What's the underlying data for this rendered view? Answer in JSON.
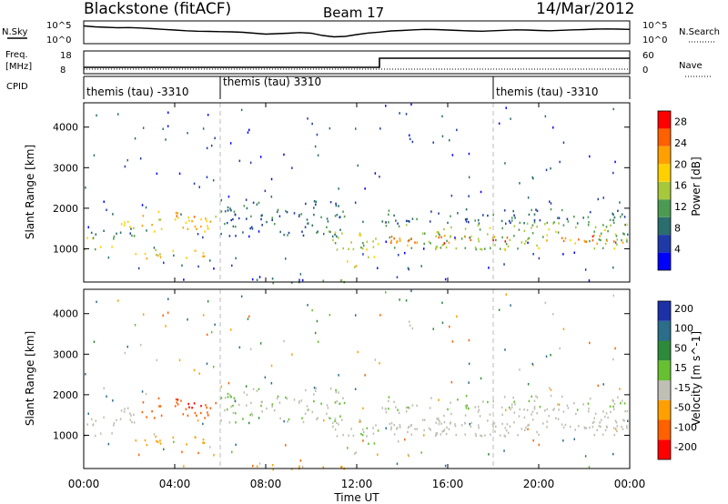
{
  "header": {
    "station": "Blackstone (fitACF)",
    "beam": "Beam 17",
    "date": "14/Mar/2012"
  },
  "noise_panel": {
    "left_label": "N.Sky",
    "right_label": "N.Search",
    "left_ticks": [
      "10^5",
      "10^0"
    ],
    "right_ticks": [
      "10^5",
      "10^0"
    ],
    "sky_trace": [
      0.78,
      0.74,
      0.72,
      0.7,
      0.71,
      0.69,
      0.66,
      0.63,
      0.6,
      0.57,
      0.55,
      0.54,
      0.53,
      0.52,
      0.5,
      0.46,
      0.42,
      0.44,
      0.46,
      0.49,
      0.46,
      0.36,
      0.3,
      0.32,
      0.4,
      0.47,
      0.51,
      0.56,
      0.58,
      0.61,
      0.63,
      0.62,
      0.6,
      0.58,
      0.56,
      0.55,
      0.57,
      0.59,
      0.61,
      0.6,
      0.58,
      0.57,
      0.59,
      0.61,
      0.62,
      0.64,
      0.65,
      0.64,
      0.63
    ]
  },
  "freq_panel": {
    "left_label_top": "Freq.",
    "left_label_bottom": "[MHz]",
    "right_label": "Nave",
    "left_ticks": [
      "18",
      "8"
    ],
    "right_ticks": [
      "60",
      "0"
    ],
    "steps": [
      {
        "t0": 0.0,
        "t1": 13.0,
        "mhz": 10.8
      },
      {
        "t0": 13.0,
        "t1": 24.0,
        "mhz": 14.8
      }
    ]
  },
  "cpid_panel": {
    "label": "CPID",
    "segments": [
      {
        "start": 0.0,
        "text": "themis (tau) -3310"
      },
      {
        "start": 6.0,
        "text": "themis (tau) 3310"
      },
      {
        "start": 18.0,
        "text": "themis (tau) -3310"
      }
    ]
  },
  "power_panel": {
    "colorbar_title": "Power [dB]",
    "colorbar_ticks": [
      "28",
      "24",
      "20",
      "16",
      "12",
      "8",
      "4"
    ],
    "colors": [
      "#0000ff",
      "#1f3aa8",
      "#2a6e6e",
      "#4c9a52",
      "#a8c83c",
      "#ffd000",
      "#ffa000",
      "#ff6000",
      "#ff0000"
    ]
  },
  "velocity_panel": {
    "colorbar_title": "Velocity [m s^-1]",
    "colorbar_ticks": [
      "200",
      "100",
      "50",
      "15",
      "-15",
      "-50",
      "-100",
      "-200"
    ],
    "colors": [
      "#1c30a8",
      "#2a6e8a",
      "#2d8a3a",
      "#66c030",
      "#bfbfb4",
      "#ffa000",
      "#ff6000",
      "#ff0000"
    ]
  },
  "y_axis": {
    "label": "Slant Range [km]",
    "ticks": [
      "4000",
      "3000",
      "2000",
      "1000"
    ]
  },
  "x_axis": {
    "label": "Time UT",
    "ticks": [
      "00:00",
      "04:00",
      "08:00",
      "12:00",
      "16:00",
      "20:00",
      "00:00"
    ]
  },
  "chart_data": {
    "type": "heatmap",
    "title": "Blackstone (fitACF) Beam 17 14/Mar/2012",
    "xlabel": "Time UT",
    "ylabel": "Slant Range [km]",
    "xlim_hours": [
      0,
      24
    ],
    "ylim_km": [
      180,
      4600
    ],
    "grid": "dashed vertical lines at 06:00 and 18:00",
    "power_range_db": [
      0,
      30
    ],
    "velocity_range_ms": [
      -250,
      250
    ],
    "scatter_regions": [
      {
        "t0": 0.0,
        "t1": 1.4,
        "r0": 1000,
        "r1": 1350,
        "power": 14,
        "velocity": -5
      },
      {
        "t0": 0.2,
        "t1": 2.2,
        "r0": 1250,
        "r1": 1550,
        "power": 10,
        "velocity": -10
      },
      {
        "t0": 1.2,
        "t1": 2.6,
        "r0": 1550,
        "r1": 1750,
        "power": 16,
        "velocity": -5
      },
      {
        "t0": 2.2,
        "t1": 5.6,
        "r0": 780,
        "r1": 1050,
        "power": 18,
        "velocity": -60
      },
      {
        "t0": 2.4,
        "t1": 5.8,
        "r0": 1450,
        "r1": 1850,
        "power": 20,
        "velocity": -120
      },
      {
        "t0": 3.2,
        "t1": 5.4,
        "r0": 1700,
        "r1": 1950,
        "power": 22,
        "velocity": -150
      },
      {
        "t0": 6.0,
        "t1": 11.5,
        "r0": 1300,
        "r1": 2200,
        "power": 8,
        "velocity": 10
      },
      {
        "t0": 6.5,
        "t1": 11.5,
        "r0": 180,
        "r1": 300,
        "power": 10,
        "velocity": -60
      },
      {
        "t0": 10.6,
        "t1": 12.8,
        "r0": 1000,
        "r1": 1500,
        "power": 16,
        "velocity": -20
      },
      {
        "t0": 11.3,
        "t1": 12.0,
        "r0": 450,
        "r1": 750,
        "power": 20,
        "velocity": 20
      },
      {
        "t0": 12.0,
        "t1": 13.0,
        "r0": 800,
        "r1": 1300,
        "power": 16,
        "velocity": 20
      },
      {
        "t0": 13.0,
        "t1": 24.0,
        "r0": 1000,
        "r1": 1700,
        "power": 14,
        "velocity": -5
      },
      {
        "t0": 13.0,
        "t1": 24.0,
        "r0": 1150,
        "r1": 1350,
        "power": 24,
        "velocity": -5
      },
      {
        "t0": 13.0,
        "t1": 24.0,
        "r0": 1650,
        "r1": 2000,
        "power": 8,
        "velocity": 10
      }
    ]
  }
}
